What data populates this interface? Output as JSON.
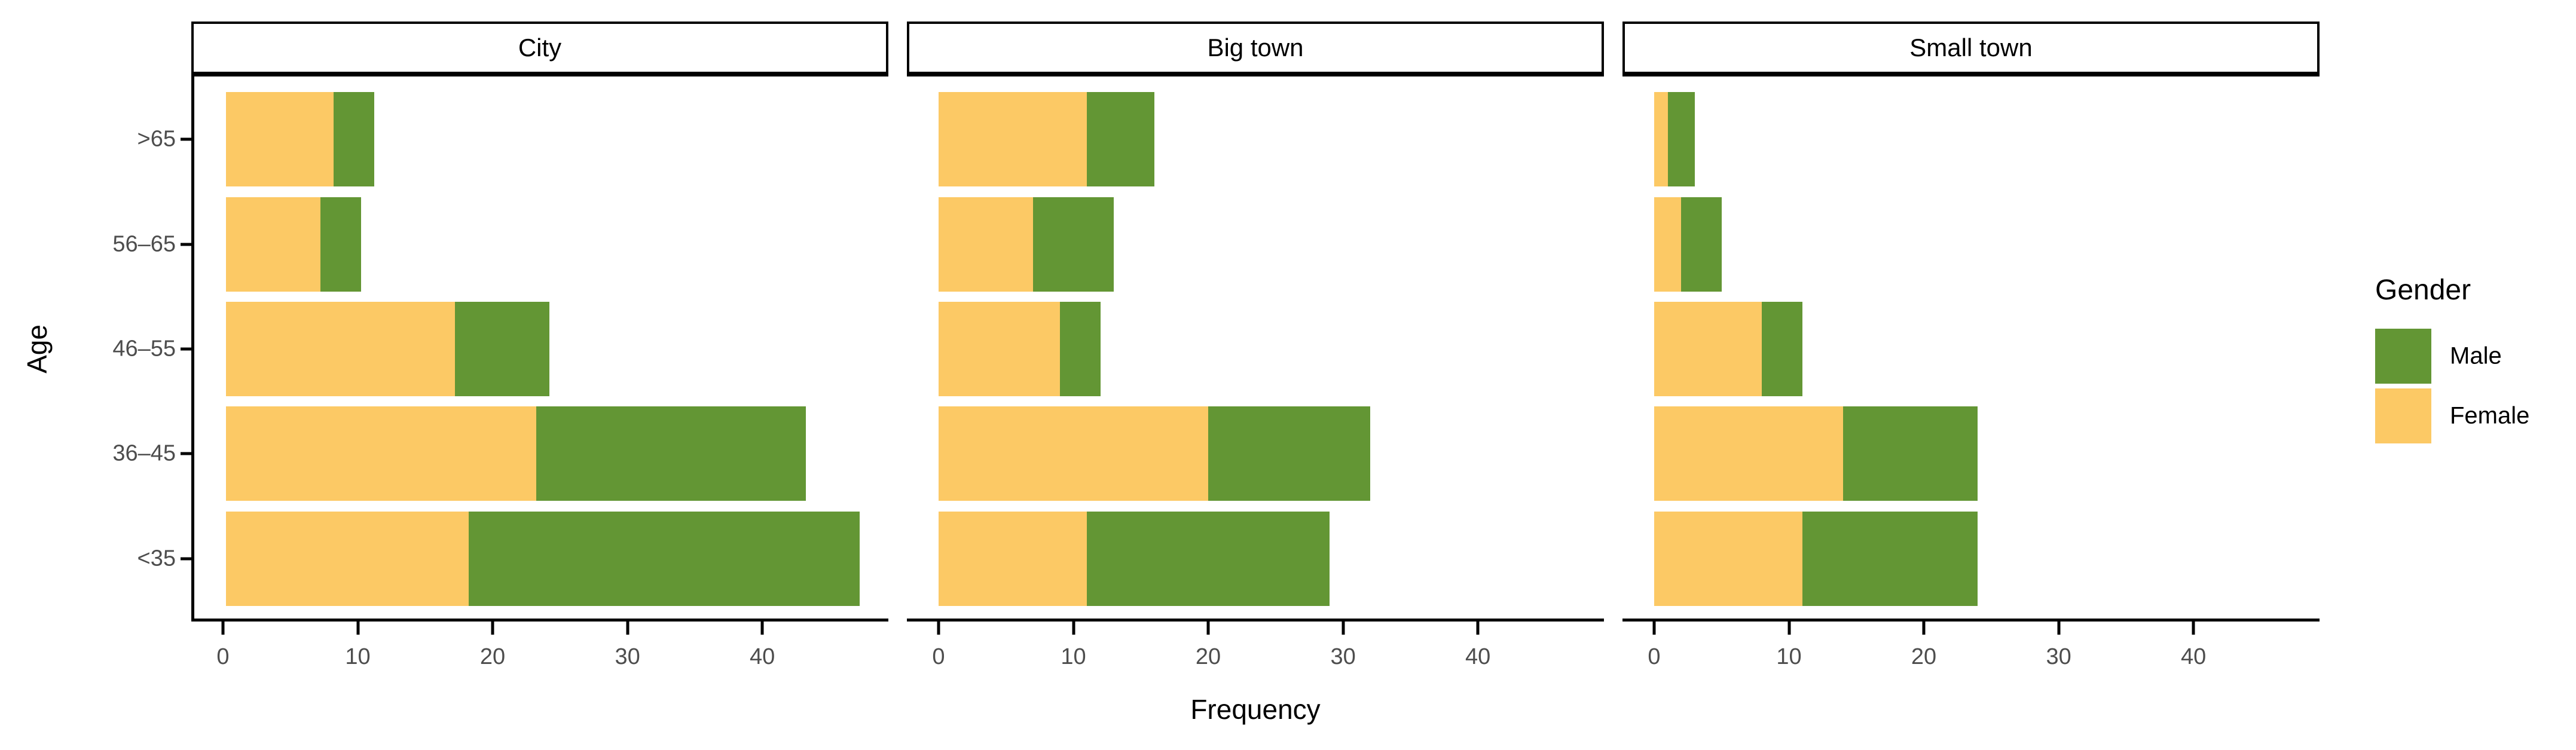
{
  "chart_data": {
    "type": "bar",
    "orientation": "horizontal",
    "stacked": true,
    "grid": false,
    "xlabel": "Frequency",
    "ylabel": "Age",
    "legend_title": "Gender",
    "legend_position": "right",
    "x_ticks": [
      0,
      10,
      20,
      30,
      40
    ],
    "xlim": [
      -2.35,
      49.35
    ],
    "categories": [
      ">65",
      "56–65",
      "46–55",
      "36–45",
      "<35"
    ],
    "colors": {
      "male": "#639634",
      "female": "#FCC965"
    },
    "legend_items": [
      {
        "label": "Male",
        "color": "#639634"
      },
      {
        "label": "Female",
        "color": "#FCC965"
      }
    ],
    "facets": [
      {
        "label": "City",
        "series": [
          {
            "name": "Female",
            "values": [
              8,
              7,
              17,
              23,
              18
            ]
          },
          {
            "name": "Male",
            "values": [
              3,
              3,
              7,
              20,
              29
            ]
          }
        ],
        "totals": [
          11,
          10,
          24,
          43,
          47
        ]
      },
      {
        "label": "Big town",
        "series": [
          {
            "name": "Female",
            "values": [
              11,
              7,
              9,
              20,
              11
            ]
          },
          {
            "name": "Male",
            "values": [
              5,
              6,
              3,
              12,
              18
            ]
          }
        ],
        "totals": [
          16,
          13,
          12,
          32,
          29
        ]
      },
      {
        "label": "Small town",
        "series": [
          {
            "name": "Female",
            "values": [
              1,
              2,
              8,
              14,
              11
            ]
          },
          {
            "name": "Male",
            "values": [
              2,
              3,
              3,
              10,
              13
            ]
          }
        ],
        "totals": [
          3,
          5,
          11,
          24,
          24
        ]
      }
    ]
  }
}
